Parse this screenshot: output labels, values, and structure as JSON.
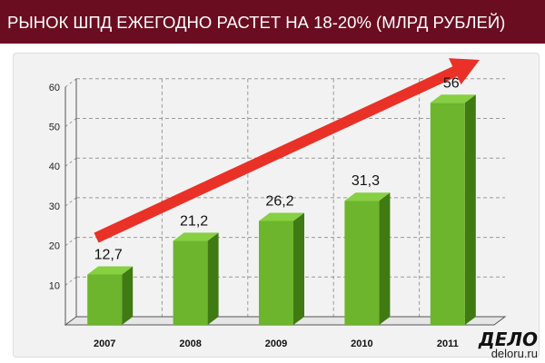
{
  "header": {
    "title": "РЫНОК ШПД ЕЖЕГОДНО РАСТЕТ НА 18-20% (МЛРД РУБЛЕЙ)",
    "background": "#6b0d20"
  },
  "chart_data": {
    "type": "bar",
    "title": "РЫНОК ШПД ЕЖЕГОДНО РАСТЕТ НА 18-20% (МЛРД РУБЛЕЙ)",
    "categories": [
      "2007",
      "2008",
      "2009",
      "2010",
      "2011"
    ],
    "values": [
      12.7,
      21.2,
      26.2,
      31.3,
      56
    ],
    "data_labels": [
      "12,7",
      "21,2",
      "26,2",
      "31,3",
      "56"
    ],
    "y_ticks": [
      "10",
      "20",
      "30",
      "40",
      "50",
      "60"
    ],
    "ylim": [
      0,
      60
    ],
    "xlabel": "",
    "ylabel": "",
    "grid": true,
    "bar_style": "3d",
    "bar_color": "#6cb52c",
    "trend_arrow_color": "#e8261c"
  },
  "logo": {
    "mark": "ДЕЛО",
    "site": "deloru.ru"
  }
}
